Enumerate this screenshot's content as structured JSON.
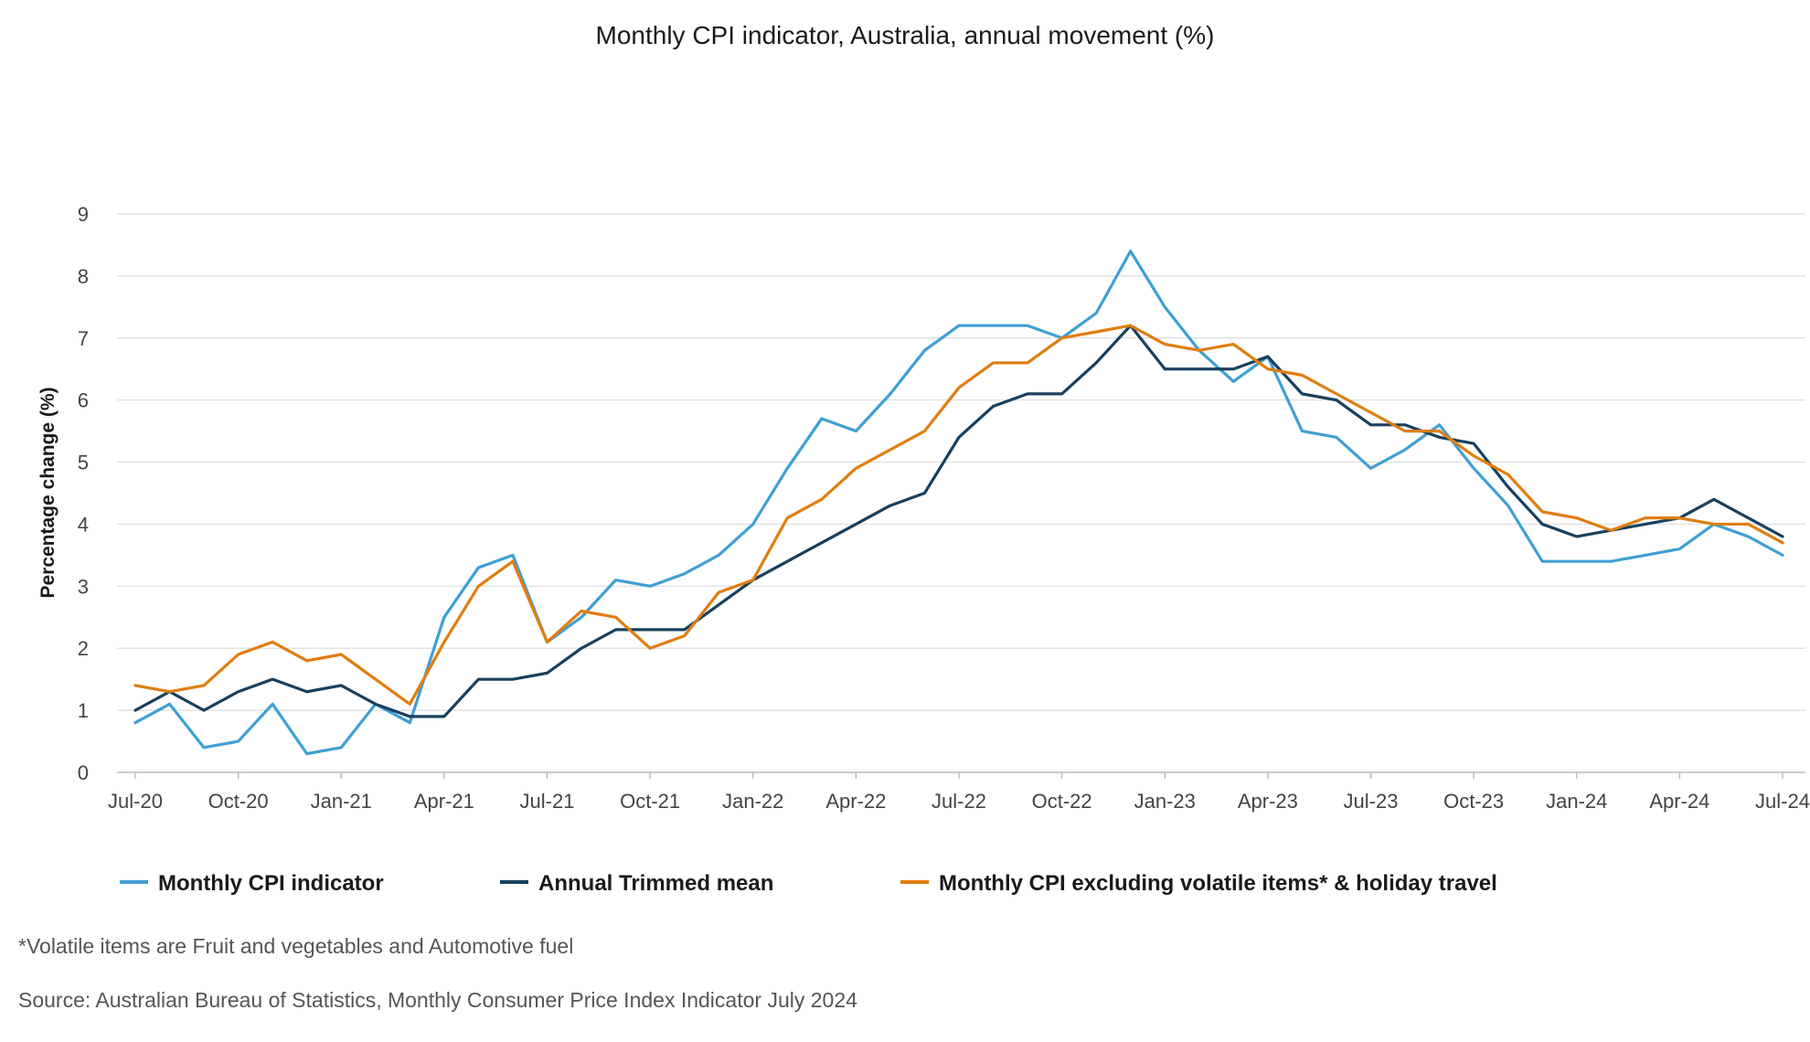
{
  "chart_data": {
    "type": "line",
    "title": "Monthly CPI indicator, Australia, annual movement (%)",
    "xlabel": "",
    "ylabel": "Percentage change (%)",
    "ylim": [
      0,
      9
    ],
    "yticks": [
      "0",
      "1",
      "2",
      "3",
      "4",
      "5",
      "6",
      "7",
      "8",
      "9"
    ],
    "grid": true,
    "legend_position": "bottom",
    "categories": [
      "Jul-20",
      "Aug-20",
      "Sep-20",
      "Oct-20",
      "Nov-20",
      "Dec-20",
      "Jan-21",
      "Feb-21",
      "Mar-21",
      "Apr-21",
      "May-21",
      "Jun-21",
      "Jul-21",
      "Aug-21",
      "Sep-21",
      "Oct-21",
      "Nov-21",
      "Dec-21",
      "Jan-22",
      "Feb-22",
      "Mar-22",
      "Apr-22",
      "May-22",
      "Jun-22",
      "Jul-22",
      "Aug-22",
      "Sep-22",
      "Oct-22",
      "Nov-22",
      "Dec-22",
      "Jan-23",
      "Feb-23",
      "Mar-23",
      "Apr-23",
      "May-23",
      "Jun-23",
      "Jul-23",
      "Aug-23",
      "Sep-23",
      "Oct-23",
      "Nov-23",
      "Dec-23",
      "Jan-24",
      "Feb-24",
      "Mar-24",
      "Apr-24",
      "May-24",
      "Jun-24",
      "Jul-24"
    ],
    "xtick_labels": [
      {
        "index": 0,
        "label": "Jul-20"
      },
      {
        "index": 3,
        "label": "Oct-20"
      },
      {
        "index": 6,
        "label": "Jan-21"
      },
      {
        "index": 9,
        "label": "Apr-21"
      },
      {
        "index": 12,
        "label": "Jul-21"
      },
      {
        "index": 15,
        "label": "Oct-21"
      },
      {
        "index": 18,
        "label": "Jan-22"
      },
      {
        "index": 21,
        "label": "Apr-22"
      },
      {
        "index": 24,
        "label": "Jul-22"
      },
      {
        "index": 27,
        "label": "Oct-22"
      },
      {
        "index": 30,
        "label": "Jan-23"
      },
      {
        "index": 33,
        "label": "Apr-23"
      },
      {
        "index": 36,
        "label": "Jul-23"
      },
      {
        "index": 39,
        "label": "Oct-23"
      },
      {
        "index": 42,
        "label": "Jan-24"
      },
      {
        "index": 45,
        "label": "Apr-24"
      },
      {
        "index": 48,
        "label": "Jul-24"
      }
    ],
    "series": [
      {
        "name": "Monthly CPI indicator",
        "color": "#3f9fd3",
        "values": [
          0.8,
          1.1,
          0.4,
          0.5,
          1.1,
          0.3,
          0.4,
          1.1,
          0.8,
          2.5,
          3.3,
          3.5,
          2.1,
          2.5,
          3.1,
          3.0,
          3.2,
          3.5,
          4.0,
          4.9,
          5.7,
          5.5,
          6.1,
          6.8,
          7.2,
          7.2,
          7.2,
          7.0,
          7.4,
          8.4,
          7.5,
          6.8,
          6.3,
          6.7,
          5.5,
          5.4,
          4.9,
          5.2,
          5.6,
          4.9,
          4.3,
          3.4,
          3.4,
          3.4,
          3.5,
          3.6,
          4.0,
          3.8,
          3.5
        ]
      },
      {
        "name": "Annual Trimmed mean",
        "color": "#17405f",
        "values": [
          1.0,
          1.3,
          1.0,
          1.3,
          1.5,
          1.3,
          1.4,
          1.1,
          0.9,
          0.9,
          1.5,
          1.5,
          1.6,
          2.0,
          2.3,
          2.3,
          2.3,
          2.7,
          3.1,
          3.4,
          3.7,
          4.0,
          4.3,
          4.5,
          5.4,
          5.9,
          6.1,
          6.1,
          6.6,
          7.2,
          6.5,
          6.5,
          6.5,
          6.7,
          6.1,
          6.0,
          5.6,
          5.6,
          5.4,
          5.3,
          4.6,
          4.0,
          3.8,
          3.9,
          4.0,
          4.1,
          4.4,
          4.1,
          3.8
        ]
      },
      {
        "name": "Monthly CPI excluding volatile items* & holiday travel",
        "color": "#e07d10",
        "values": [
          1.4,
          1.3,
          1.4,
          1.9,
          2.1,
          1.8,
          1.9,
          1.5,
          1.1,
          2.1,
          3.0,
          3.4,
          2.1,
          2.6,
          2.5,
          2.0,
          2.2,
          2.9,
          3.1,
          4.1,
          4.4,
          4.9,
          5.2,
          5.5,
          6.2,
          6.6,
          6.6,
          7.0,
          7.1,
          7.2,
          6.9,
          6.8,
          6.9,
          6.5,
          6.4,
          6.1,
          5.8,
          5.5,
          5.5,
          5.1,
          4.8,
          4.2,
          4.1,
          3.9,
          4.1,
          4.1,
          4.0,
          4.0,
          3.7
        ]
      }
    ],
    "footnote": "*Volatile items are Fruit and vegetables and Automotive fuel",
    "source": "Source: Australian Bureau of Statistics, Monthly Consumer Price Index Indicator July 2024"
  }
}
